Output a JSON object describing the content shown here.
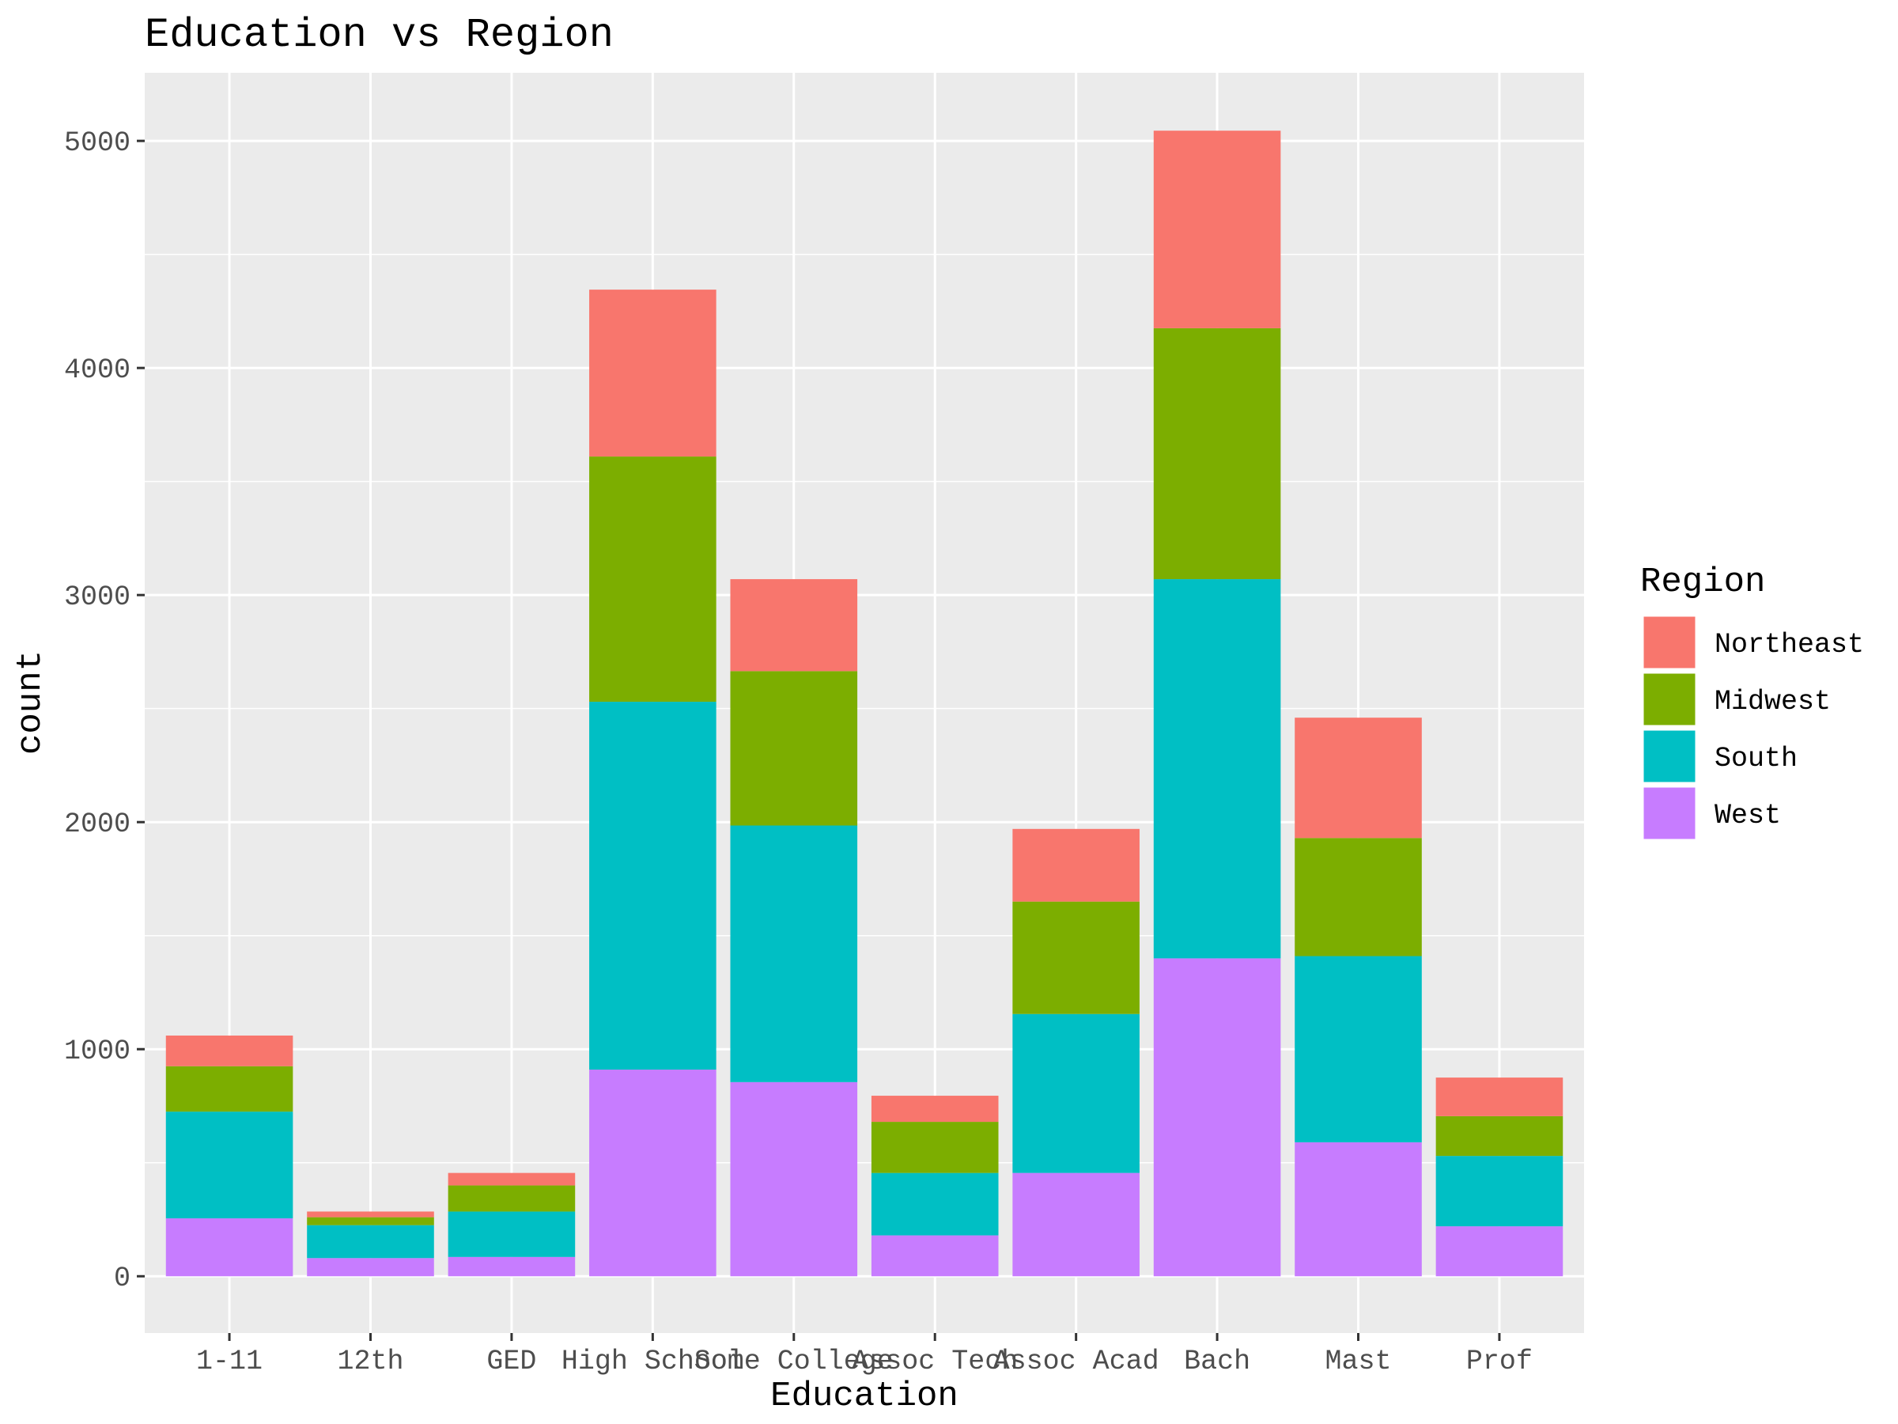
{
  "chart_data": {
    "type": "bar",
    "stacked": true,
    "title": "Education vs Region",
    "xlabel": "Education",
    "ylabel": "count",
    "categories": [
      "1-11",
      "12th",
      "GED",
      "High School",
      "Some College",
      "Assoc Tech",
      "Assoc Acad",
      "Bach",
      "Mast",
      "Prof"
    ],
    "ylim": [
      -250,
      5300
    ],
    "yticks": [
      0,
      1000,
      2000,
      3000,
      4000,
      5000
    ],
    "grid": true,
    "legend": {
      "title": "Region",
      "position": "right"
    },
    "series": [
      {
        "name": "West",
        "color": "#C77CFF",
        "values": [
          255,
          80,
          85,
          910,
          855,
          180,
          455,
          1400,
          590,
          220
        ]
      },
      {
        "name": "South",
        "color": "#00BFC4",
        "values": [
          470,
          145,
          200,
          1620,
          1130,
          275,
          700,
          1670,
          820,
          310
        ]
      },
      {
        "name": "Midwest",
        "color": "#7CAE00",
        "values": [
          200,
          35,
          115,
          1080,
          680,
          225,
          495,
          1105,
          520,
          175
        ]
      },
      {
        "name": "Northeast",
        "color": "#F8766D",
        "values": [
          135,
          25,
          55,
          735,
          405,
          115,
          320,
          870,
          530,
          170
        ]
      }
    ]
  }
}
